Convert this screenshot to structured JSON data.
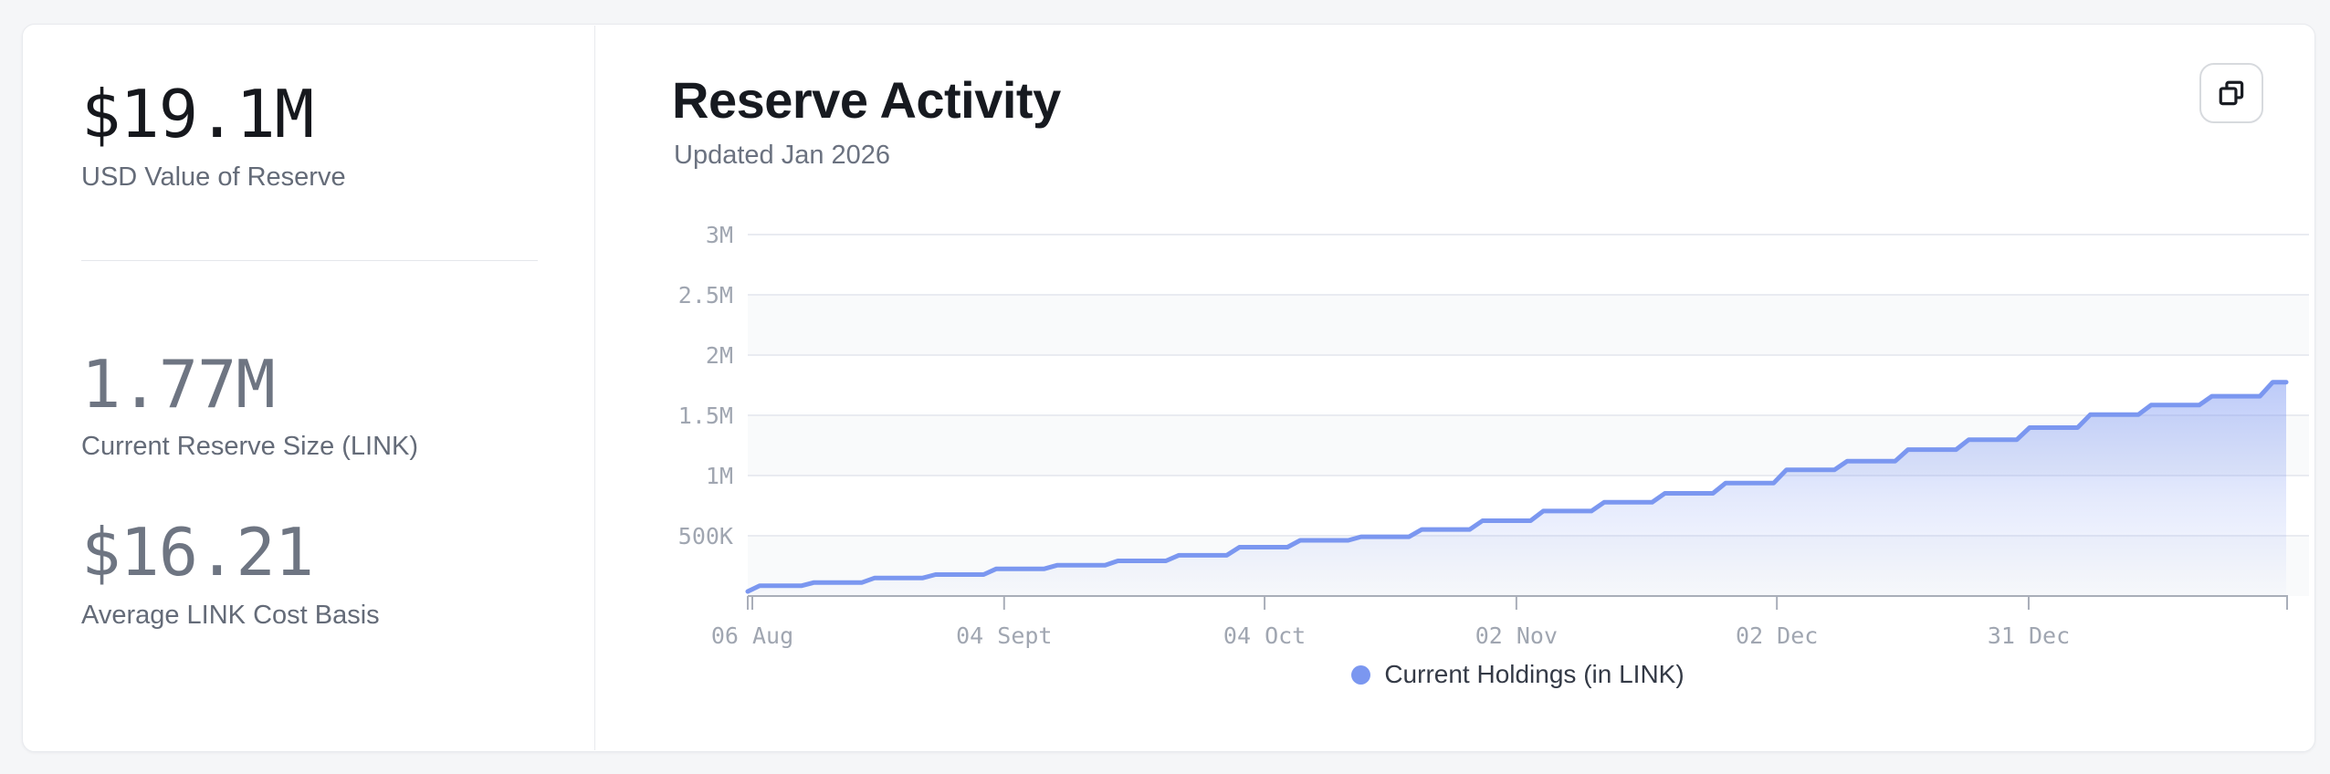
{
  "page": {
    "background": "#f5f6f8"
  },
  "stats_panel": {
    "stats": [
      {
        "value": "$19.1M",
        "label": "USD Value of Reserve"
      },
      {
        "value": "1.77M",
        "label": "Current Reserve Size (LINK)"
      },
      {
        "value": "$16.21",
        "label": "Average LINK Cost Basis"
      }
    ]
  },
  "chart_panel": {
    "title": "Reserve Activity",
    "subtitle": "Updated Jan 2026",
    "copy_button_icon": "copy-icon"
  },
  "chart_data": {
    "type": "area",
    "step": true,
    "title": "Reserve Activity",
    "xlabel": "",
    "ylabel": "",
    "ylim": [
      0,
      3000000
    ],
    "grid": "horizontal",
    "legend_position": "bottom-center",
    "colors": {
      "line": "#7b97f0",
      "fill_top": "rgba(124,151,242,0.50)",
      "fill_bottom": "rgba(124,151,242,0.02)",
      "gridline": "#e9ebf1",
      "band": "#f9fafb",
      "axis": "#a9aeb9",
      "tick_text": "#a0a6b1"
    },
    "y_ticks": [
      {
        "label": "500K",
        "value": 500000
      },
      {
        "label": "1M",
        "value": 1000000
      },
      {
        "label": "1.5M",
        "value": 1500000
      },
      {
        "label": "2M",
        "value": 2000000
      },
      {
        "label": "2.5M",
        "value": 2500000
      },
      {
        "label": "3M",
        "value": 3000000
      }
    ],
    "x_ticks": [
      {
        "label": "06 Aug",
        "day": 0
      },
      {
        "label": "04 Sept",
        "day": 29
      },
      {
        "label": "04 Oct",
        "day": 59
      },
      {
        "label": "02 Nov",
        "day": 88
      },
      {
        "label": "02 Dec",
        "day": 118
      },
      {
        "label": "31 Dec",
        "day": 147
      }
    ],
    "series": [
      {
        "name": "Current Holdings (in LINK)",
        "color": "#7b97f0",
        "x": [
          "Aug 06",
          "Aug 13",
          "Aug 20",
          "Aug 27",
          "Sep 03",
          "Sep 10",
          "Sep 17",
          "Sep 24",
          "Oct 01",
          "Oct 08",
          "Oct 15",
          "Oct 22",
          "Oct 29",
          "Nov 05",
          "Nov 12",
          "Nov 19",
          "Nov 26",
          "Dec 03",
          "Dec 10",
          "Dec 17",
          "Dec 24",
          "Dec 31",
          "Jan 07",
          "Jan 14",
          "Jan 21",
          "Jan 28"
        ],
        "values": [
          85000,
          112000,
          150000,
          178000,
          226000,
          255000,
          292000,
          338000,
          405000,
          462000,
          492000,
          552000,
          625000,
          705000,
          778000,
          852000,
          938000,
          1048000,
          1120000,
          1215000,
          1298000,
          1398000,
          1505000,
          1585000,
          1658000,
          1775000
        ]
      }
    ]
  }
}
